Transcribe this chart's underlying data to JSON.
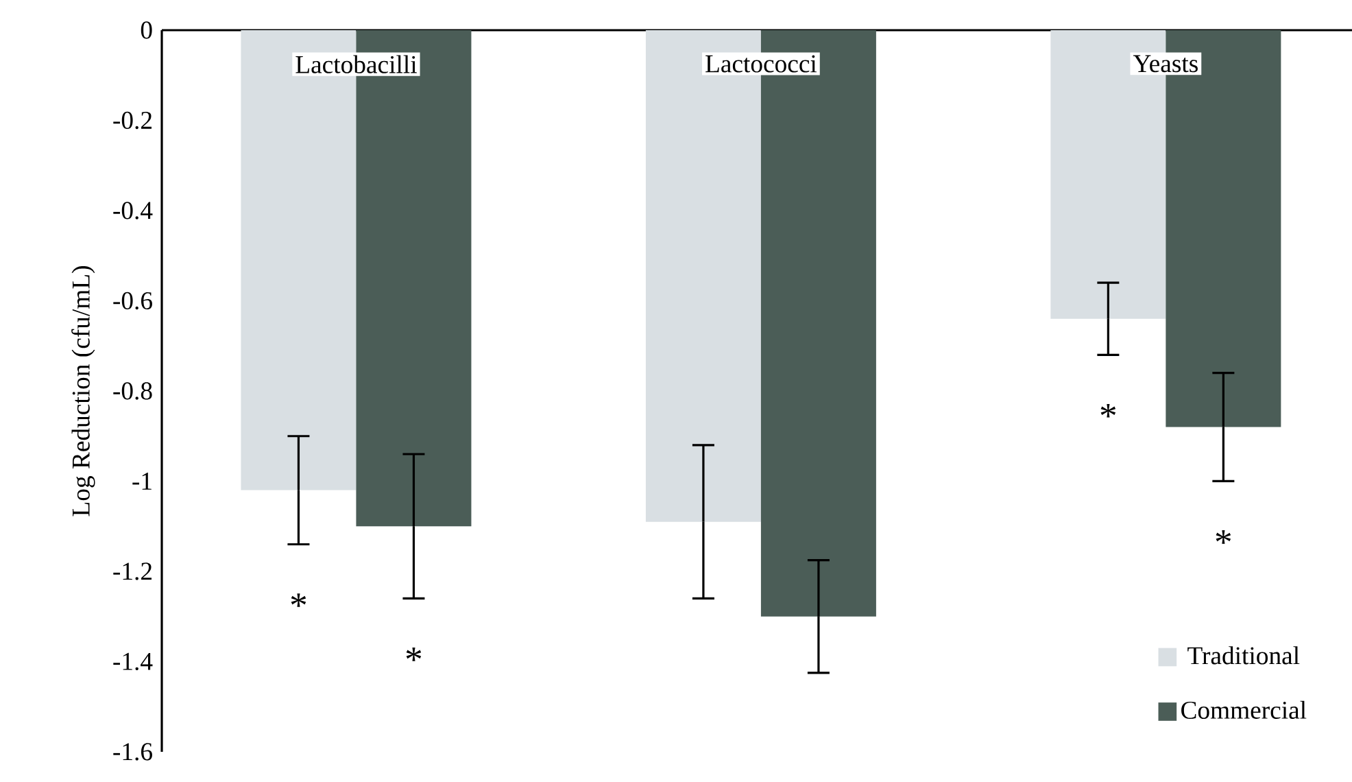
{
  "chart_data": {
    "type": "bar",
    "ylabel": "Log Reduction (cfu/mL)",
    "categories": [
      "Lactobacilli",
      "Lactococci",
      "Yeasts"
    ],
    "series": [
      {
        "name": "Traditional",
        "color": "#d9dfe3",
        "values": [
          -1.02,
          -1.09,
          -0.64
        ],
        "errors": [
          0.12,
          0.17,
          0.08
        ]
      },
      {
        "name": "Commercial",
        "color": "#4b5d57",
        "values": [
          -1.1,
          -1.3,
          -0.88
        ],
        "errors": [
          0.16,
          0.125,
          0.12
        ]
      }
    ],
    "ylim": [
      -1.6,
      0
    ],
    "yticks": [
      -1.6,
      -1.4,
      -1.2,
      -1,
      -0.8,
      -0.6,
      -0.4,
      -0.2,
      0
    ],
    "annotations": [
      "*",
      "*",
      "*",
      "*"
    ],
    "legend": "bottom right",
    "grid": false
  }
}
